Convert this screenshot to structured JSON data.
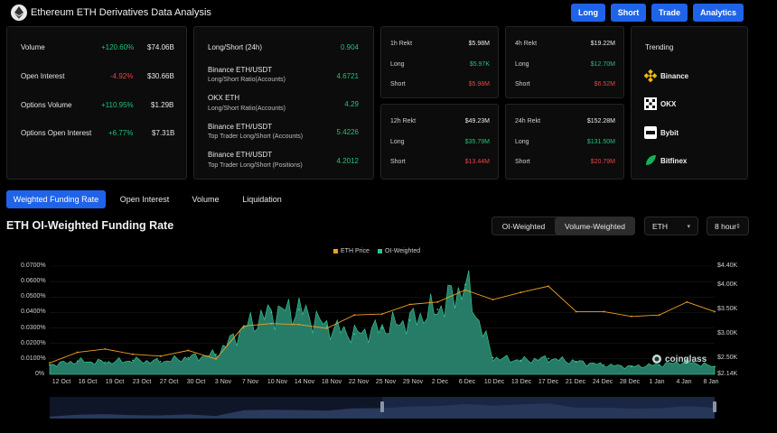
{
  "header": {
    "title": "Ethereum ETH Derivatives Data Analysis",
    "buttons": {
      "long": "Long",
      "short": "Short",
      "trade": "Trade",
      "analytics": "Analytics"
    }
  },
  "stats": [
    {
      "label": "Volume",
      "change": "+120.60%",
      "value": "$74.06B"
    },
    {
      "label": "Open Interest",
      "change": "-4.92%",
      "value": "$30.66B"
    },
    {
      "label": "Options Volume",
      "change": "+110.95%",
      "value": "$1.29B"
    },
    {
      "label": "Options Open Interest",
      "change": "+6.77%",
      "value": "$7.31B"
    }
  ],
  "ratios": {
    "header_label": "Long/Short (24h)",
    "header_value": "0.904",
    "items": [
      {
        "title": "Binance ETH/USDT",
        "sub": "Long/Short Ratio(Accounts)",
        "value": "4.6721"
      },
      {
        "title": "OKX ETH",
        "sub": "Long/Short Ratio(Accounts)",
        "value": "4.29"
      },
      {
        "title": "Binance ETH/USDT",
        "sub": "Top Trader Long/Short (Accounts)",
        "value": "5.4226"
      },
      {
        "title": "Binance ETH/USDT",
        "sub": "Top Trader Long/Short (Positions)",
        "value": "4.2012"
      }
    ]
  },
  "rekt": {
    "h1": {
      "title": "1h Rekt",
      "total": "$5.98M",
      "long_label": "Long",
      "long": "$5.97K",
      "short_label": "Short",
      "short": "$5.98M"
    },
    "h4": {
      "title": "4h Rekt",
      "total": "$19.22M",
      "long_label": "Long",
      "long": "$12.70M",
      "short_label": "Short",
      "short": "$6.52M"
    },
    "h12": {
      "title": "12h Rekt",
      "total": "$49.23M",
      "long_label": "Long",
      "long": "$35.79M",
      "short_label": "Short",
      "short": "$13.44M"
    },
    "h24": {
      "title": "24h Rekt",
      "total": "$152.28M",
      "long_label": "Long",
      "long": "$131.50M",
      "short_label": "Short",
      "short": "$20.79M"
    }
  },
  "trending": {
    "title": "Trending",
    "items": [
      {
        "name": "Binance",
        "icon": "binance-icon"
      },
      {
        "name": "OKX",
        "icon": "okx-icon"
      },
      {
        "name": "Bybit",
        "icon": "bybit-icon"
      },
      {
        "name": "Bitfinex",
        "icon": "bitfinex-icon"
      }
    ]
  },
  "tabs": [
    "Weighted Funding Rate",
    "Open Interest",
    "Volume",
    "Liquidation"
  ],
  "section": {
    "title": "ETH OI-Weighted Funding Rate",
    "toggle": [
      "OI-Weighted",
      "Volume-Weighted"
    ],
    "coin_select": "ETH",
    "interval_select": "8 hour"
  },
  "watermark": "coinglass",
  "colors": {
    "accent": "#1f63e8",
    "positive": "#20c07a",
    "negative": "#e8443c",
    "price_line": "#f0a020",
    "area": "#2a8a72"
  },
  "chart_data": {
    "type": "area",
    "legend": [
      "ETH Price",
      "OI-Weighted"
    ],
    "categories": [
      "12 Oct",
      "16 Oct",
      "19 Oct",
      "23 Oct",
      "27 Oct",
      "30 Oct",
      "3 Nov",
      "7 Nov",
      "10 Nov",
      "14 Nov",
      "18 Nov",
      "22 Nov",
      "25 Nov",
      "29 Nov",
      "2 Dec",
      "6 Dec",
      "10 Dec",
      "13 Dec",
      "17 Dec",
      "21 Dec",
      "24 Dec",
      "28 Dec",
      "1 Jan",
      "4 Jan",
      "8 Jan"
    ],
    "y_left_ticks": [
      "0%",
      "0.0100%",
      "0.0200%",
      "0.0300%",
      "0.0400%",
      "0.0500%",
      "0.0600%",
      "0.0700%"
    ],
    "y_right_ticks": [
      "$2.14K",
      "$2.50K",
      "$3.00K",
      "$3.50K",
      "$4.00K",
      "$4.40K"
    ],
    "ylim_left": [
      0,
      0.07
    ],
    "ylim_right": [
      2140,
      4400
    ],
    "series": [
      {
        "name": "OI-Weighted",
        "values": [
          0.0062,
          0.0085,
          0.0078,
          0.009,
          0.0082,
          0.0108,
          0.0128,
          0.03,
          0.04,
          0.042,
          0.031,
          0.026,
          0.03,
          0.035,
          0.042,
          0.058,
          0.0108,
          0.009,
          0.0102,
          0.0082,
          0.006,
          0.005,
          0.0062,
          0.0082,
          0.005
        ]
      },
      {
        "name": "ETH Price",
        "values": [
          2380,
          2600,
          2670,
          2560,
          2520,
          2640,
          2460,
          3150,
          3200,
          3180,
          3100,
          3380,
          3400,
          3600,
          3650,
          3900,
          3700,
          3850,
          3980,
          3450,
          3450,
          3350,
          3380,
          3650,
          3450
        ]
      }
    ]
  }
}
